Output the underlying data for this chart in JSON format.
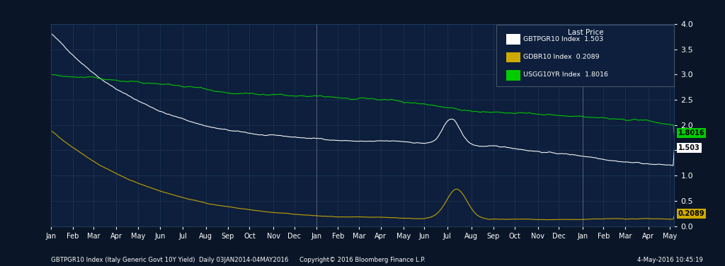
{
  "background_color": "#0a1628",
  "plot_bg_color": "#0d1f3c",
  "grid_color": "#1e3a5f",
  "italy_color": "#ffffff",
  "germany_color": "#ccaa00",
  "usa_color": "#00cc00",
  "italy_label": "GBTPGR10 Index",
  "germany_label": "GDBR10 Index",
  "usa_label": "USGG10YR Index",
  "italy_last": "1.503",
  "germany_last": "0.2089",
  "usa_last": "1.8016",
  "italy_end_label": "1.503",
  "germany_end_label": "0.2089",
  "usa_end_label": "1.8016",
  "ylim": [
    0.0,
    4.0
  ],
  "yticks": [
    0.0,
    0.5,
    1.0,
    1.5,
    2.0,
    2.5,
    3.0,
    3.5,
    4.0
  ],
  "footer_left": "GBTPGR10 Index (Italy Generic Govt 10Y Yield)  Daily 03JAN2014-04MAY2016",
  "footer_center": "Copyright© 2016 Bloomberg Finance L.P.",
  "footer_right": "4-May-2016 10:45:19",
  "last_price_title": "Last Price"
}
